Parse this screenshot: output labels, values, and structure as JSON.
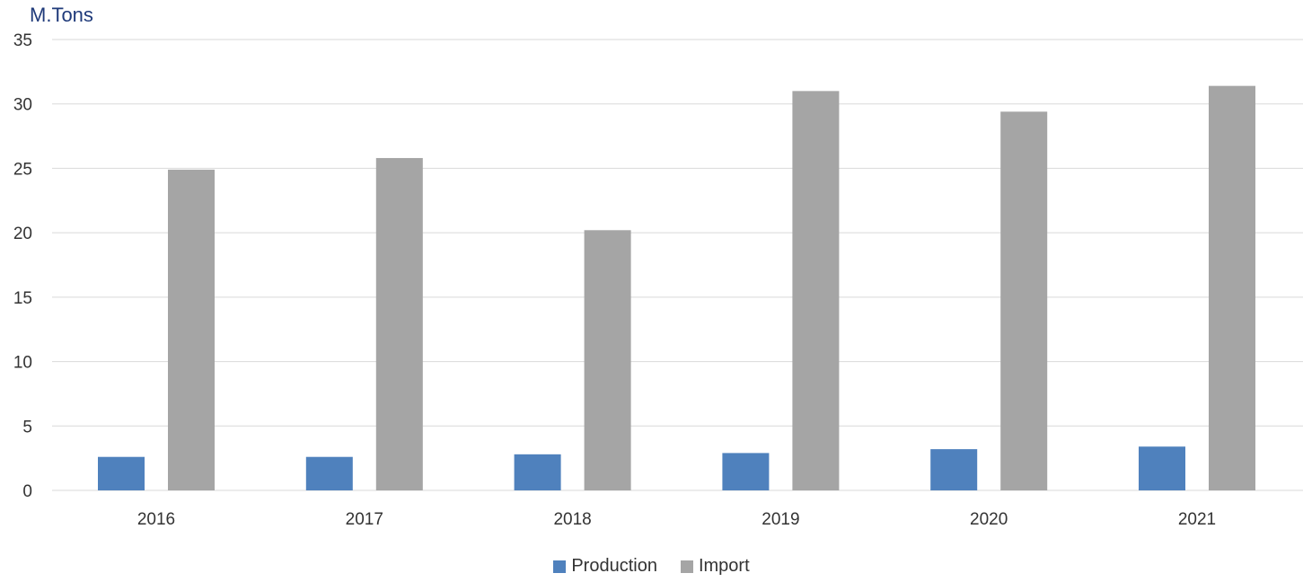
{
  "chart_data": {
    "type": "bar",
    "ylabel": "M.Tons",
    "categories": [
      "2016",
      "2017",
      "2018",
      "2019",
      "2020",
      "2021"
    ],
    "series": [
      {
        "name": "Production",
        "color": "#4f81bd",
        "values": [
          2.6,
          2.6,
          2.8,
          2.9,
          3.2,
          3.4
        ]
      },
      {
        "name": "Import",
        "color": "#a5a5a5",
        "values": [
          24.9,
          25.8,
          20.2,
          31.0,
          29.4,
          31.4
        ]
      }
    ],
    "ylim": [
      0,
      35
    ],
    "yticks": [
      0,
      5,
      10,
      15,
      20,
      25,
      30,
      35
    ],
    "grid": true,
    "legend_position": "bottom"
  }
}
